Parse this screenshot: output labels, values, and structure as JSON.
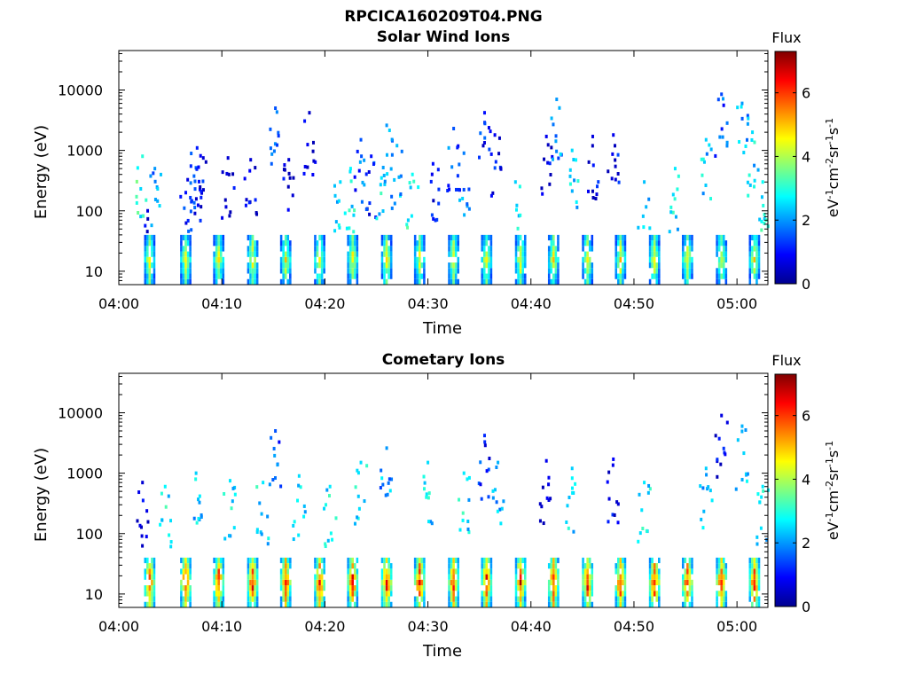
{
  "figure": {
    "title": "RPCICA160209T04.PNG"
  },
  "chart_data": [
    {
      "type": "heatmap",
      "title": "Solar Wind Ions",
      "xlabel": "Time",
      "ylabel": "Energy (eV)",
      "y_scale": "log",
      "ylim": [
        6,
        45000
      ],
      "y_ticks": [
        10,
        100,
        1000,
        10000
      ],
      "y_tick_labels": [
        "10",
        "100",
        "1000",
        "10000"
      ],
      "x_ticks": [
        "04:00",
        "04:10",
        "04:20",
        "04:30",
        "04:40",
        "04:50",
        "05:00"
      ],
      "xlim_minutes": [
        0,
        63
      ],
      "colorbar": {
        "title": "Flux",
        "label": "eV-1cm-2sr-1s-1",
        "range": [
          0,
          7.3
        ],
        "ticks": [
          0,
          2,
          4,
          6
        ],
        "tick_labels": [
          "0",
          "2",
          "4",
          "6"
        ]
      },
      "low_energy_band": {
        "energy_range_eV": [
          6,
          40
        ],
        "peak_flux": 4.5
      },
      "scan_times_minutes": [
        3,
        6.5,
        9.7,
        13,
        16.2,
        19.5,
        22.7,
        26,
        29.2,
        32.5,
        35.7,
        39,
        42.2,
        45.5,
        48.7,
        52,
        55.2,
        58.5,
        61.7
      ],
      "high_energy_points": [
        {
          "t": 2.3,
          "e": 800,
          "f": 3
        },
        {
          "t": 3.5,
          "e": 500,
          "f": 2
        },
        {
          "t": 2.8,
          "e": 100,
          "f": 0.7
        },
        {
          "t": 6.5,
          "e": 200,
          "f": 1
        },
        {
          "t": 7.0,
          "e": 550,
          "f": 1.2
        },
        {
          "t": 7.6,
          "e": 1100,
          "f": 1.1
        },
        {
          "t": 8.2,
          "e": 750,
          "f": 0.6
        },
        {
          "t": 10.6,
          "e": 750,
          "f": 0.6
        },
        {
          "t": 12.8,
          "e": 700,
          "f": 0.6
        },
        {
          "t": 15.2,
          "e": 5000,
          "f": 1.5
        },
        {
          "t": 16.5,
          "e": 700,
          "f": 0.6
        },
        {
          "t": 18.5,
          "e": 4200,
          "f": 0.5
        },
        {
          "t": 21.5,
          "e": 300,
          "f": 2.5
        },
        {
          "t": 22.5,
          "e": 500,
          "f": 2.7
        },
        {
          "t": 23.5,
          "e": 1500,
          "f": 1.5
        },
        {
          "t": 24.5,
          "e": 800,
          "f": 1
        },
        {
          "t": 25.5,
          "e": 350,
          "f": 2.6
        },
        {
          "t": 26.0,
          "e": 2600,
          "f": 2
        },
        {
          "t": 27.0,
          "e": 1200,
          "f": 2.3
        },
        {
          "t": 28.5,
          "e": 400,
          "f": 2.8
        },
        {
          "t": 30.5,
          "e": 600,
          "f": 1
        },
        {
          "t": 32.5,
          "e": 2300,
          "f": 1.5
        },
        {
          "t": 33.5,
          "e": 900,
          "f": 1.8
        },
        {
          "t": 35.5,
          "e": 4200,
          "f": 1
        },
        {
          "t": 36.5,
          "e": 1800,
          "f": 0.8
        },
        {
          "t": 38.5,
          "e": 300,
          "f": 2.4
        },
        {
          "t": 41.5,
          "e": 1700,
          "f": 0.8
        },
        {
          "t": 42.5,
          "e": 7000,
          "f": 2
        },
        {
          "t": 44.0,
          "e": 1000,
          "f": 2.5
        },
        {
          "t": 46.0,
          "e": 1700,
          "f": 0.7
        },
        {
          "t": 48.0,
          "e": 1800,
          "f": 0.8
        },
        {
          "t": 51.0,
          "e": 300,
          "f": 2.3
        },
        {
          "t": 54.0,
          "e": 500,
          "f": 2.6
        },
        {
          "t": 57.0,
          "e": 1500,
          "f": 2.4
        },
        {
          "t": 58.5,
          "e": 8500,
          "f": 1.4
        },
        {
          "t": 60.5,
          "e": 6000,
          "f": 2
        },
        {
          "t": 61.5,
          "e": 2000,
          "f": 2.5
        },
        {
          "t": 62.5,
          "e": 300,
          "f": 2.8
        }
      ]
    },
    {
      "type": "heatmap",
      "title": "Cometary Ions",
      "xlabel": "Time",
      "ylabel": "Energy (eV)",
      "y_scale": "log",
      "ylim": [
        6,
        45000
      ],
      "y_ticks": [
        10,
        100,
        1000,
        10000
      ],
      "y_tick_labels": [
        "10",
        "100",
        "1000",
        "10000"
      ],
      "x_ticks": [
        "04:00",
        "04:10",
        "04:20",
        "04:30",
        "04:40",
        "04:50",
        "05:00"
      ],
      "xlim_minutes": [
        0,
        63
      ],
      "colorbar": {
        "title": "Flux",
        "label": "eV-1cm-2sr-1s-1",
        "range": [
          0,
          7.3
        ],
        "ticks": [
          0,
          2,
          4,
          6
        ],
        "tick_labels": [
          "0",
          "2",
          "4",
          "6"
        ]
      },
      "low_energy_band": {
        "energy_range_eV": [
          6,
          40
        ],
        "peak_flux": 6.3
      },
      "scan_times_minutes": [
        3,
        6.5,
        9.7,
        13,
        16.2,
        19.5,
        22.7,
        26,
        29.2,
        32.5,
        35.7,
        39,
        42.2,
        45.5,
        48.7,
        52,
        55.2,
        58.5,
        61.7
      ],
      "high_energy_points": [
        {
          "t": 2.3,
          "e": 700,
          "f": 0.6
        },
        {
          "t": 4.5,
          "e": 600,
          "f": 2.7
        },
        {
          "t": 7.5,
          "e": 1000,
          "f": 2.4
        },
        {
          "t": 10.8,
          "e": 750,
          "f": 2.6
        },
        {
          "t": 14.0,
          "e": 700,
          "f": 2.6
        },
        {
          "t": 15.2,
          "e": 5000,
          "f": 1.5
        },
        {
          "t": 17.5,
          "e": 900,
          "f": 2.5
        },
        {
          "t": 20.5,
          "e": 600,
          "f": 2.6
        },
        {
          "t": 23.5,
          "e": 1500,
          "f": 2.5
        },
        {
          "t": 26.0,
          "e": 2600,
          "f": 2
        },
        {
          "t": 30.0,
          "e": 1500,
          "f": 2.5
        },
        {
          "t": 33.5,
          "e": 1000,
          "f": 2.6
        },
        {
          "t": 35.5,
          "e": 4200,
          "f": 1.2
        },
        {
          "t": 36.8,
          "e": 1500,
          "f": 2.2
        },
        {
          "t": 41.5,
          "e": 1600,
          "f": 0.8
        },
        {
          "t": 44.0,
          "e": 1200,
          "f": 2.4
        },
        {
          "t": 48.0,
          "e": 1700,
          "f": 0.9
        },
        {
          "t": 51.0,
          "e": 700,
          "f": 2.6
        },
        {
          "t": 57.0,
          "e": 1200,
          "f": 2.4
        },
        {
          "t": 58.5,
          "e": 9000,
          "f": 0.7
        },
        {
          "t": 60.5,
          "e": 6000,
          "f": 2.2
        },
        {
          "t": 62.5,
          "e": 600,
          "f": 2.6
        }
      ]
    }
  ]
}
